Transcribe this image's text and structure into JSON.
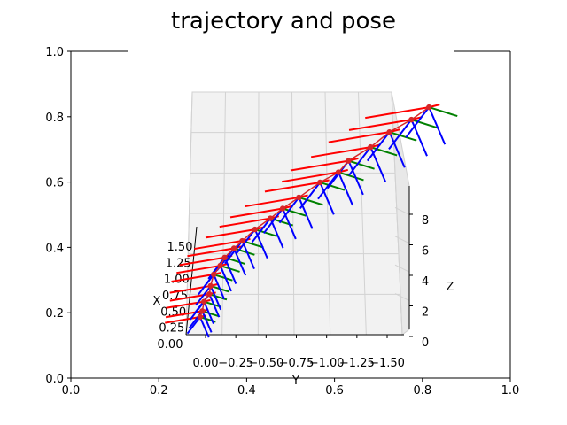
{
  "chart_data": {
    "type": "line",
    "title": "trajectory and pose",
    "outer_axes": {
      "x_ticks": [
        "0.0",
        "0.2",
        "0.4",
        "0.6",
        "0.8",
        "1.0"
      ],
      "y_ticks": [
        "0.0",
        "0.2",
        "0.4",
        "0.6",
        "0.8",
        "1.0"
      ],
      "xlim": [
        0,
        1
      ],
      "ylim": [
        0,
        1
      ]
    },
    "axes3d": {
      "xlabel": "X",
      "ylabel": "Y",
      "zlabel": "Z",
      "x_ticks": [
        "0.00",
        "0.25",
        "0.50",
        "0.75",
        "1.00",
        "1.25",
        "1.50"
      ],
      "y_ticks": [
        "0.00",
        "−0.25",
        "−0.50",
        "−0.75",
        "−1.00",
        "−1.25",
        "−1.50"
      ],
      "z_ticks": [
        "0",
        "2",
        "4",
        "6",
        "8"
      ],
      "grid": true
    },
    "series": [
      {
        "role": "trajectory",
        "color": "#d62728"
      },
      {
        "role": "pose-x-axis",
        "color": "#ff0000"
      },
      {
        "role": "pose-y-axis",
        "color": "#008000"
      },
      {
        "role": "pose-z-axis",
        "color": "#0000ff"
      }
    ],
    "trajectory_screen": [
      [
        0.294,
        0.187
      ],
      [
        0.299,
        0.205
      ],
      [
        0.303,
        0.234
      ],
      [
        0.315,
        0.257
      ],
      [
        0.318,
        0.282
      ],
      [
        0.325,
        0.317
      ],
      [
        0.34,
        0.344
      ],
      [
        0.35,
        0.369
      ],
      [
        0.371,
        0.397
      ],
      [
        0.39,
        0.42
      ],
      [
        0.419,
        0.455
      ],
      [
        0.454,
        0.489
      ],
      [
        0.482,
        0.519
      ],
      [
        0.519,
        0.553
      ],
      [
        0.567,
        0.599
      ],
      [
        0.609,
        0.63
      ],
      [
        0.632,
        0.665
      ],
      [
        0.682,
        0.707
      ],
      [
        0.725,
        0.753
      ],
      [
        0.775,
        0.791
      ],
      [
        0.815,
        0.829
      ]
    ]
  }
}
